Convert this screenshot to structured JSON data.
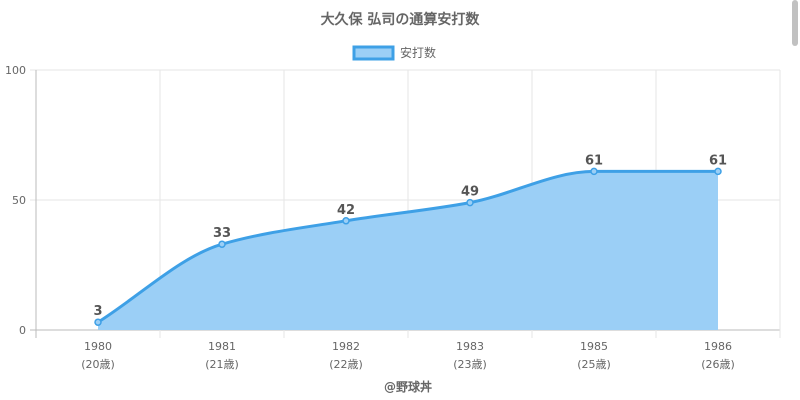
{
  "chart_data": {
    "type": "area",
    "title": "大久保 弘司の通算安打数",
    "categories": [
      "1980",
      "1981",
      "1982",
      "1983",
      "1985",
      "1986"
    ],
    "age_labels": [
      "(20歳)",
      "(21歳)",
      "(22歳)",
      "(23歳)",
      "(25歳)",
      "(26歳)"
    ],
    "series": [
      {
        "name": "安打数",
        "values": [
          3,
          33,
          42,
          49,
          61,
          61
        ]
      }
    ],
    "ylim": [
      0,
      100
    ],
    "yticks": [
      "0",
      "50",
      "100"
    ],
    "grid": true,
    "legend": "top-center",
    "line_color": "#3ea0e6",
    "fill_color": "#9bcff6"
  },
  "credit": "@野球丼"
}
